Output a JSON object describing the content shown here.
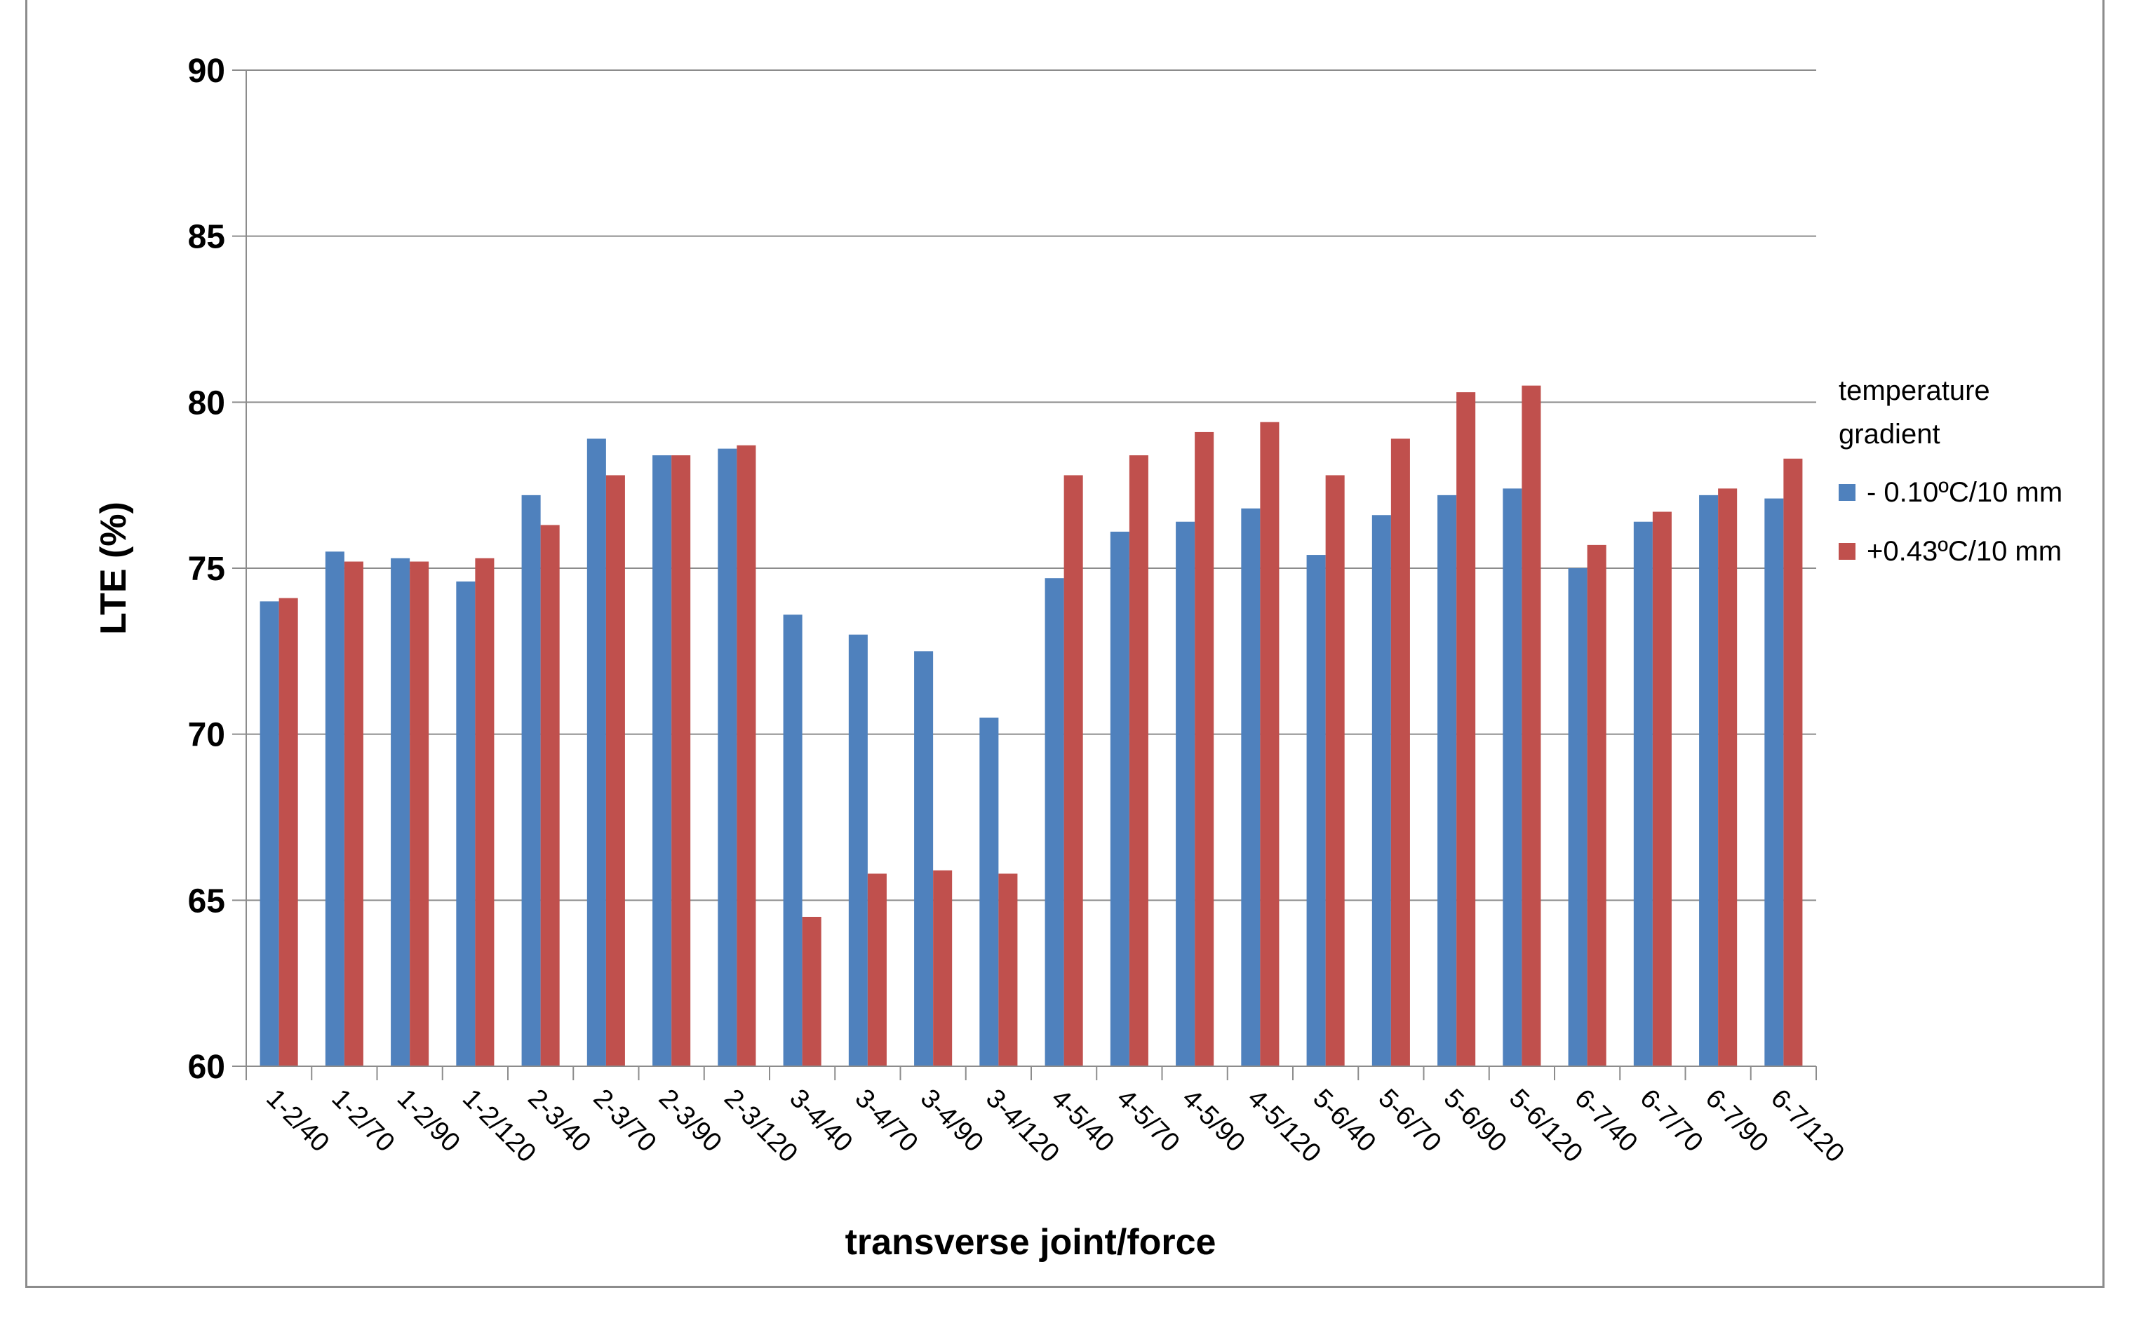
{
  "chart_data": {
    "type": "bar",
    "title": "",
    "xlabel": "transverse joint/force",
    "ylabel": "LTE (%)",
    "ylim": [
      60,
      90
    ],
    "yticks": [
      60,
      65,
      70,
      75,
      80,
      85,
      90
    ],
    "grid": true,
    "legend": {
      "placement": "right",
      "title_lines": [
        "temperature",
        "gradient"
      ]
    },
    "categories": [
      "1-2/40",
      "1-2/70",
      "1-2/90",
      "1-2/120",
      "2-3/40",
      "2-3/70",
      "2-3/90",
      "2-3/120",
      "3-4/40",
      "3-4/70",
      "3-4/90",
      "3-4/120",
      "4-5/40",
      "4-5/70",
      "4-5/90",
      "4-5/120",
      "5-6/40",
      "5-6/70",
      "5-6/90",
      "5-6/120",
      "6-7/40",
      "6-7/70",
      "6-7/90",
      "6-7/120"
    ],
    "series": [
      {
        "name": "- 0.10ºC/10 mm",
        "color": "#4f81bd",
        "values": [
          74.0,
          75.5,
          75.3,
          74.6,
          77.2,
          78.9,
          78.4,
          78.6,
          73.6,
          73.0,
          72.5,
          70.5,
          74.7,
          76.1,
          76.4,
          76.8,
          75.4,
          76.6,
          77.2,
          77.4,
          75.0,
          76.4,
          77.2,
          77.1
        ]
      },
      {
        "name": "+0.43ºC/10 mm",
        "color": "#c0504d",
        "values": [
          74.1,
          75.2,
          75.2,
          75.3,
          76.3,
          77.8,
          78.4,
          78.7,
          64.5,
          65.8,
          65.9,
          65.8,
          77.8,
          78.4,
          79.1,
          79.4,
          77.8,
          78.9,
          80.3,
          80.5,
          75.7,
          76.7,
          77.4,
          78.3
        ]
      }
    ]
  }
}
